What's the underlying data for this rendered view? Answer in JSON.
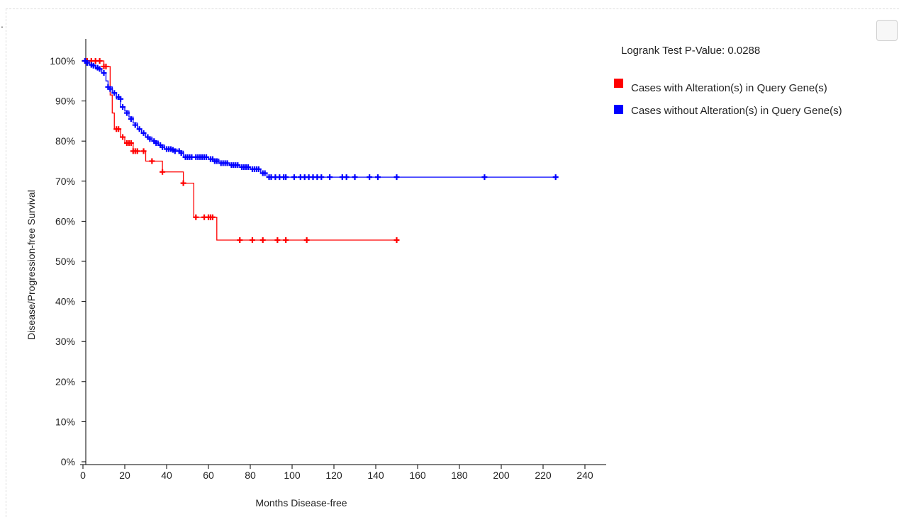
{
  "chart_data": {
    "type": "line",
    "xlabel": "Months Disease-free",
    "ylabel": "Disease/Progression-free Survival",
    "xlim": [
      0,
      240
    ],
    "ylim": [
      0,
      100
    ],
    "xticks": [
      0,
      20,
      40,
      60,
      80,
      100,
      120,
      140,
      160,
      180,
      200,
      220,
      240
    ],
    "yticks": [
      0,
      10,
      20,
      30,
      40,
      50,
      60,
      70,
      80,
      90,
      100
    ],
    "ytick_labels": [
      "0%",
      "10%",
      "20%",
      "30%",
      "40%",
      "50%",
      "60%",
      "70%",
      "80%",
      "90%",
      "100%"
    ],
    "annotation": "Logrank Test P-Value: 0.0288",
    "legend_position": "top-right",
    "grid": false,
    "series": [
      {
        "name": "Cases with Alteration(s) in Query Gene(s)",
        "color": "#ff0000",
        "steps": [
          [
            0,
            100
          ],
          [
            10,
            98.6
          ],
          [
            13,
            91.5
          ],
          [
            14,
            87
          ],
          [
            15,
            83
          ],
          [
            18,
            81
          ],
          [
            20,
            79.5
          ],
          [
            24,
            77.5
          ],
          [
            30,
            75
          ],
          [
            38,
            72.3
          ],
          [
            48,
            69.5
          ],
          [
            53,
            61
          ],
          [
            64,
            55.3
          ],
          [
            150,
            55.3
          ]
        ],
        "censored": [
          [
            1,
            100
          ],
          [
            2,
            100
          ],
          [
            4,
            100
          ],
          [
            6,
            100
          ],
          [
            8,
            100
          ],
          [
            10,
            98.6
          ],
          [
            11,
            98.6
          ],
          [
            16,
            83
          ],
          [
            17,
            83
          ],
          [
            19,
            81
          ],
          [
            21,
            79.5
          ],
          [
            22,
            79.5
          ],
          [
            23,
            79.5
          ],
          [
            24,
            77.5
          ],
          [
            25,
            77.5
          ],
          [
            26,
            77.5
          ],
          [
            29,
            77.5
          ],
          [
            33,
            75
          ],
          [
            38,
            72.3
          ],
          [
            48,
            69.5
          ],
          [
            54,
            61
          ],
          [
            58,
            61
          ],
          [
            60,
            61
          ],
          [
            61,
            61
          ],
          [
            62,
            61
          ],
          [
            75,
            55.3
          ],
          [
            81,
            55.3
          ],
          [
            86,
            55.3
          ],
          [
            93,
            55.3
          ],
          [
            97,
            55.3
          ],
          [
            107,
            55.3
          ],
          [
            150,
            55.3
          ]
        ]
      },
      {
        "name": "Cases without Alteration(s) in Query Gene(s)",
        "color": "#0000ff",
        "steps": [
          [
            0,
            100
          ],
          [
            3,
            99
          ],
          [
            6,
            98
          ],
          [
            9,
            97
          ],
          [
            11,
            95
          ],
          [
            12,
            93.5
          ],
          [
            14,
            92
          ],
          [
            16,
            90.5
          ],
          [
            18,
            88.5
          ],
          [
            20,
            87.5
          ],
          [
            22,
            86
          ],
          [
            24,
            84.5
          ],
          [
            26,
            83
          ],
          [
            28,
            82
          ],
          [
            30,
            81
          ],
          [
            33,
            80
          ],
          [
            36,
            79
          ],
          [
            39,
            78
          ],
          [
            45,
            77.5
          ],
          [
            48,
            76
          ],
          [
            60,
            75.5
          ],
          [
            65,
            74.5
          ],
          [
            70,
            74
          ],
          [
            75,
            73.5
          ],
          [
            80,
            73
          ],
          [
            85,
            72
          ],
          [
            88,
            71
          ],
          [
            226,
            71
          ]
        ],
        "censored": [
          [
            1,
            100
          ],
          [
            2,
            99.5
          ],
          [
            4,
            99
          ],
          [
            5,
            98.8
          ],
          [
            7,
            98.3
          ],
          [
            8,
            98
          ],
          [
            10,
            97
          ],
          [
            12,
            93.5
          ],
          [
            13,
            93
          ],
          [
            15,
            92
          ],
          [
            17,
            91
          ],
          [
            18,
            90.5
          ],
          [
            19,
            88.5
          ],
          [
            21,
            87
          ],
          [
            23,
            85.5
          ],
          [
            25,
            84
          ],
          [
            27,
            83
          ],
          [
            29,
            82
          ],
          [
            31,
            81
          ],
          [
            32,
            80.5
          ],
          [
            34,
            80
          ],
          [
            35,
            79.5
          ],
          [
            37,
            79
          ],
          [
            38,
            78.5
          ],
          [
            40,
            78
          ],
          [
            41,
            78
          ],
          [
            42,
            78
          ],
          [
            43,
            77.8
          ],
          [
            44,
            77.5
          ],
          [
            46,
            77.5
          ],
          [
            47,
            77
          ],
          [
            49,
            76
          ],
          [
            50,
            76
          ],
          [
            51,
            76
          ],
          [
            52,
            76
          ],
          [
            54,
            76
          ],
          [
            55,
            76
          ],
          [
            56,
            76
          ],
          [
            57,
            76
          ],
          [
            58,
            76
          ],
          [
            59,
            76
          ],
          [
            61,
            75.5
          ],
          [
            62,
            75.5
          ],
          [
            63,
            75
          ],
          [
            64,
            75
          ],
          [
            66,
            74.5
          ],
          [
            67,
            74.5
          ],
          [
            68,
            74.5
          ],
          [
            69,
            74.5
          ],
          [
            71,
            74
          ],
          [
            72,
            74
          ],
          [
            73,
            74
          ],
          [
            74,
            74
          ],
          [
            76,
            73.5
          ],
          [
            77,
            73.5
          ],
          [
            78,
            73.5
          ],
          [
            79,
            73.5
          ],
          [
            81,
            73
          ],
          [
            82,
            73
          ],
          [
            83,
            73
          ],
          [
            84,
            73
          ],
          [
            86,
            72
          ],
          [
            87,
            72
          ],
          [
            89,
            71
          ],
          [
            90,
            71
          ],
          [
            92,
            71
          ],
          [
            94,
            71
          ],
          [
            96,
            71
          ],
          [
            97,
            71
          ],
          [
            101,
            71
          ],
          [
            104,
            71
          ],
          [
            106,
            71
          ],
          [
            108,
            71
          ],
          [
            110,
            71
          ],
          [
            112,
            71
          ],
          [
            114,
            71
          ],
          [
            118,
            71
          ],
          [
            124,
            71
          ],
          [
            126,
            71
          ],
          [
            130,
            71
          ],
          [
            137,
            71
          ],
          [
            141,
            71
          ],
          [
            150,
            71
          ],
          [
            192,
            71
          ],
          [
            226,
            71
          ]
        ]
      }
    ]
  }
}
